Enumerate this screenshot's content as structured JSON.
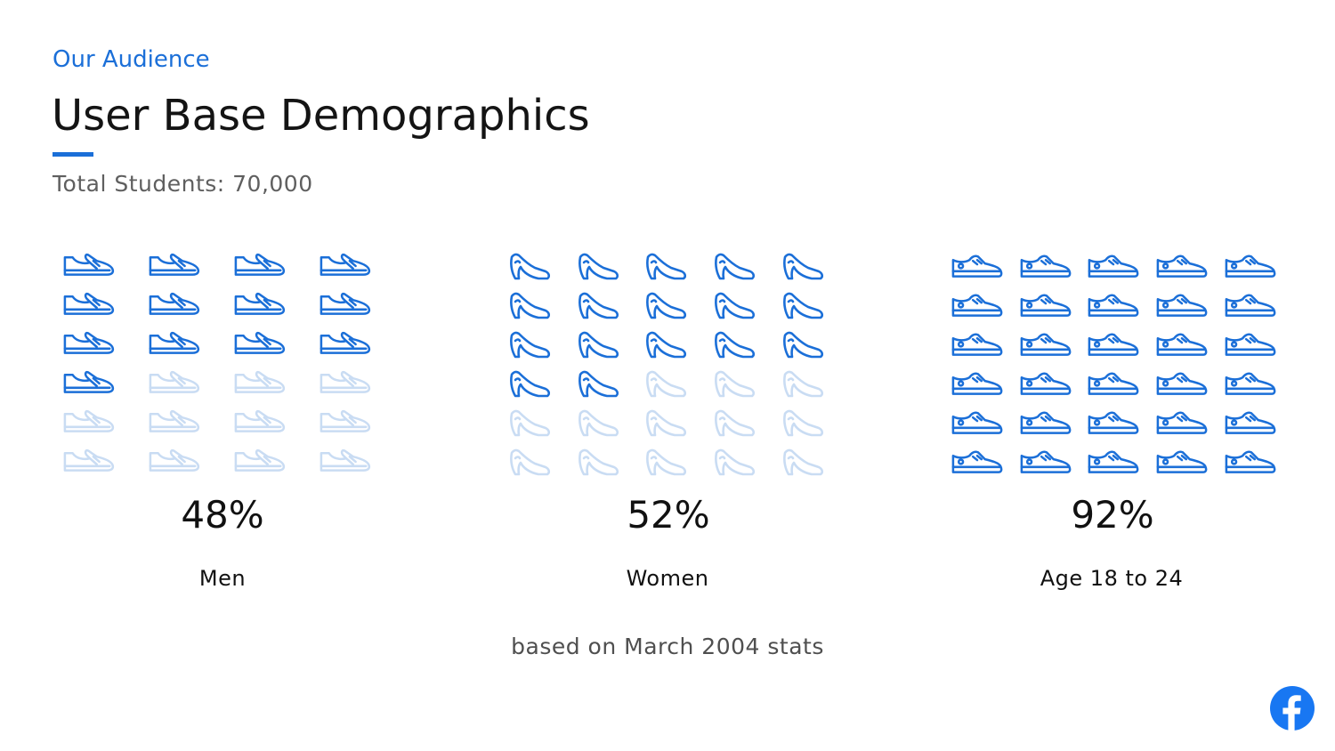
{
  "header": {
    "eyebrow": "Our Audience",
    "title": "User Base Demographics",
    "subtitle": "Total Students: 70,000"
  },
  "stats": [
    {
      "id": "men",
      "percent_text": "48%",
      "label": "Men",
      "icon": "mens-shoe-icon",
      "percent": 48,
      "filled_icons": 13,
      "total_icons": 24
    },
    {
      "id": "women",
      "percent_text": "52%",
      "label": "Women",
      "icon": "high-heel-icon",
      "percent": 52,
      "filled_icons": 17,
      "total_icons": 30
    },
    {
      "id": "age",
      "percent_text": "92%",
      "label": "Age 18 to 24",
      "icon": "sneaker-icon",
      "percent": 92,
      "filled_icons": 30,
      "total_icons": 30
    }
  ],
  "footnote": "based on March 2004 stats",
  "brand_logo": "facebook-logo-icon",
  "colors": {
    "accent": "#1b6fd8",
    "icon_filled": "#1b6fd8",
    "icon_faded": "#c9dcf3"
  }
}
